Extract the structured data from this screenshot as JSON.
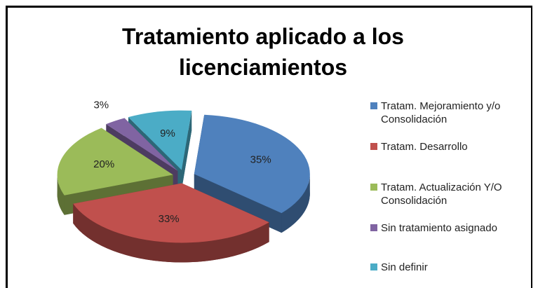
{
  "chart_data": {
    "type": "pie",
    "title": "Tratamiento  aplicado a los licenciamientos",
    "categories": [
      "Tratam. Mejoramiento y/o Consolidación",
      "Tratam. Desarrollo",
      "Tratam. Actualización Y/O Consolidación",
      "Sin tratamiento asignado",
      "Sin definir"
    ],
    "values": [
      35,
      33,
      20,
      3,
      9
    ],
    "value_labels": [
      "35%",
      "33%",
      "20%",
      "3%",
      "9%"
    ],
    "colors": [
      "#4f81bd",
      "#c0504d",
      "#9bbb59",
      "#8064a2",
      "#4bacc6"
    ],
    "legend": "right"
  }
}
